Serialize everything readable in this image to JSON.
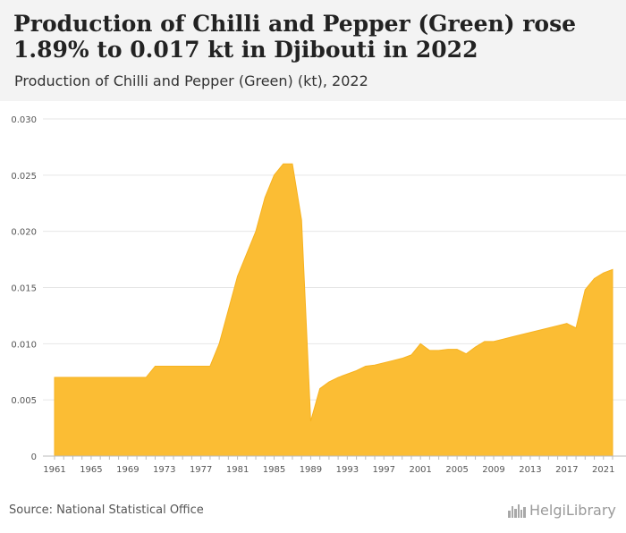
{
  "header": {
    "title": "Production of Chilli and Pepper (Green) rose 1.89% to 0.017 kt in Djibouti in 2022",
    "subtitle": "Production of Chilli and Pepper (Green) (kt), 2022"
  },
  "footer": {
    "source": "Source: National Statistical Office",
    "logo_text": "HelgiLibrary"
  },
  "colors": {
    "fill": "#fbbd34",
    "stroke": "#f7b21f",
    "grid": "#e6e6e6"
  },
  "logo_icon": "skyline-icon",
  "chart_data": {
    "type": "area",
    "grid": true,
    "legend": "none",
    "ylim": [
      0,
      0.03
    ],
    "xlim": [
      1961,
      2022
    ],
    "yticks": [
      "0",
      "0.005",
      "0.010",
      "0.015",
      "0.020",
      "0.025",
      "0.030"
    ],
    "xticks": [
      "1961",
      "1965",
      "1969",
      "1973",
      "1977",
      "1981",
      "1985",
      "1989",
      "1993",
      "1997",
      "2001",
      "2005",
      "2009",
      "2013",
      "2017",
      "2021"
    ],
    "x": [
      1961,
      1962,
      1963,
      1964,
      1965,
      1966,
      1967,
      1968,
      1969,
      1970,
      1971,
      1972,
      1973,
      1974,
      1975,
      1976,
      1977,
      1978,
      1979,
      1980,
      1981,
      1982,
      1983,
      1984,
      1985,
      1986,
      1987,
      1988,
      1989,
      1990,
      1991,
      1992,
      1993,
      1994,
      1995,
      1996,
      1997,
      1998,
      1999,
      2000,
      2001,
      2002,
      2003,
      2004,
      2005,
      2006,
      2007,
      2008,
      2009,
      2010,
      2011,
      2012,
      2013,
      2014,
      2015,
      2016,
      2017,
      2018,
      2019,
      2020,
      2021,
      2022
    ],
    "values": [
      0.007,
      0.007,
      0.007,
      0.007,
      0.007,
      0.007,
      0.007,
      0.007,
      0.007,
      0.007,
      0.007,
      0.008,
      0.008,
      0.008,
      0.008,
      0.008,
      0.008,
      0.008,
      0.01,
      0.013,
      0.016,
      0.018,
      0.02,
      0.023,
      0.025,
      0.026,
      0.026,
      0.021,
      0.0031,
      0.006,
      0.0066,
      0.007,
      0.0073,
      0.0076,
      0.008,
      0.0081,
      0.0083,
      0.0085,
      0.0087,
      0.009,
      0.01,
      0.0094,
      0.0094,
      0.0095,
      0.0095,
      0.0091,
      0.0097,
      0.0102,
      0.0102,
      0.0104,
      0.0106,
      0.0108,
      0.011,
      0.0112,
      0.0114,
      0.0116,
      0.0118,
      0.0114,
      0.0148,
      0.0158,
      0.0163,
      0.0166
    ]
  }
}
